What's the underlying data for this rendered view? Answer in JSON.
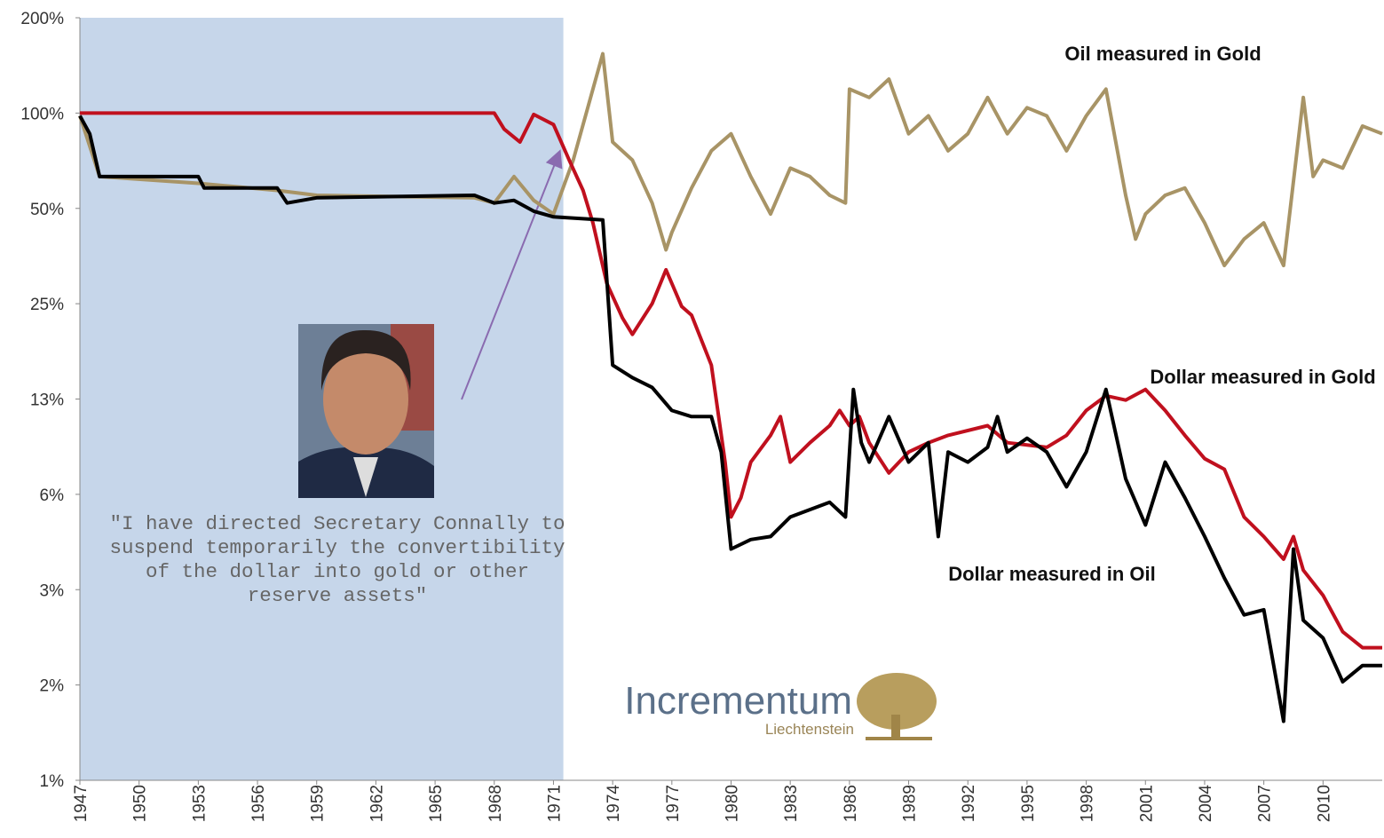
{
  "chart_data": {
    "type": "line",
    "y_scale": "log",
    "ylim": [
      0.78125,
      200
    ],
    "yticks": [
      {
        "value": 200,
        "label": "200%"
      },
      {
        "value": 100,
        "label": "100%"
      },
      {
        "value": 50,
        "label": "50%"
      },
      {
        "value": 25,
        "label": "25%"
      },
      {
        "value": 12.5,
        "label": "13%"
      },
      {
        "value": 6.25,
        "label": "6%"
      },
      {
        "value": 3.125,
        "label": "3%"
      },
      {
        "value": 1.5625,
        "label": "2%"
      },
      {
        "value": 0.78125,
        "label": "1%"
      }
    ],
    "xlim": [
      1947,
      2013
    ],
    "xticks": [
      1947,
      1950,
      1953,
      1956,
      1959,
      1962,
      1965,
      1968,
      1971,
      1974,
      1977,
      1980,
      1983,
      1986,
      1989,
      1992,
      1995,
      1998,
      2001,
      2004,
      2007,
      2010
    ],
    "shaded_span": [
      1947,
      1971.5
    ],
    "annotation": "\"I have directed Secretary Connally to suspend temporarily the convertibility of the dollar into gold or other reserve assets\"",
    "logo": {
      "name": "Incrementum",
      "subtitle": "Liechtenstein"
    },
    "series": [
      {
        "name": "Oil measured in Gold",
        "color": "#a89466",
        "x": [
          1947,
          1948,
          1953,
          1957,
          1959,
          1967,
          1968,
          1969,
          1970,
          1971,
          1972,
          1973,
          1973.5,
          1974,
          1975,
          1976,
          1976.7,
          1977,
          1978,
          1979,
          1980,
          1981,
          1982,
          1983,
          1984,
          1985,
          1985.8,
          1986,
          1987,
          1988,
          1989,
          1990,
          1991,
          1992,
          1993,
          1994,
          1995,
          1996,
          1997,
          1998,
          1999,
          2000,
          2000.5,
          2001,
          2002,
          2003,
          2004,
          2005,
          2006,
          2007,
          2008,
          2009,
          2009.5,
          2010,
          2011,
          2012,
          2013
        ],
        "values": [
          98,
          63,
          60,
          57,
          55,
          54,
          52,
          63,
          53,
          48,
          71,
          119,
          154,
          81,
          71,
          52,
          37,
          42,
          58,
          76,
          86,
          63,
          48,
          67,
          63,
          55,
          52,
          119,
          112,
          128,
          86,
          98,
          76,
          86,
          112,
          86,
          104,
          98,
          76,
          98,
          119,
          55,
          40,
          48,
          55,
          58,
          45,
          33,
          40,
          45,
          33,
          112,
          63,
          71,
          67,
          91,
          86
        ]
      },
      {
        "name": "Dollar measured in Gold",
        "color": "#c0101e",
        "x": [
          1947,
          1968,
          1968.5,
          1969.3,
          1970,
          1971,
          1971.8,
          1972.5,
          1973,
          1973.7,
          1974.5,
          1975,
          1976,
          1976.7,
          1977.5,
          1978,
          1979,
          1979.7,
          1980,
          1980.5,
          1981,
          1982,
          1982.5,
          1983,
          1984,
          1985,
          1985.5,
          1986,
          1986.5,
          1987,
          1988,
          1989,
          1990,
          1991,
          1993,
          1994,
          1996,
          1997,
          1998,
          1999,
          2000,
          2001,
          2002,
          2003,
          2004,
          2005,
          2006,
          2007,
          2008,
          2008.5,
          2009,
          2010,
          2011,
          2012,
          2013
        ],
        "values": [
          100,
          100,
          89,
          81,
          99,
          92,
          71,
          57,
          45,
          29,
          22.5,
          20,
          25,
          32,
          24.5,
          23,
          16,
          7.9,
          5.3,
          6.1,
          7.9,
          9.6,
          11,
          7.9,
          9.1,
          10.3,
          11.5,
          10.3,
          11,
          9.1,
          7.3,
          8.5,
          9.1,
          9.6,
          10.3,
          9.1,
          8.8,
          9.6,
          11.5,
          12.8,
          12.4,
          13.4,
          11.5,
          9.6,
          8.1,
          7.5,
          5.3,
          4.6,
          3.9,
          4.6,
          3.6,
          3.0,
          2.3,
          2.05,
          2.05
        ]
      },
      {
        "name": "Dollar measured in Oil",
        "color": "#000000",
        "x": [
          1947,
          1947.5,
          1948,
          1953,
          1953.3,
          1957,
          1957.5,
          1959,
          1967,
          1968,
          1969,
          1970,
          1971,
          1973.5,
          1974,
          1975,
          1976,
          1977,
          1978,
          1979,
          1979.5,
          1980,
          1981,
          1982,
          1983,
          1985,
          1985.8,
          1986.2,
          1986.6,
          1987,
          1988,
          1989,
          1990,
          1990.5,
          1991,
          1992,
          1993,
          1993.5,
          1994,
          1995,
          1996,
          1997,
          1998,
          1999,
          2000,
          2001,
          2002,
          2003,
          2004,
          2005,
          2006,
          2007,
          2008,
          2008.5,
          2009,
          2010,
          2011,
          2012,
          2013
        ],
        "values": [
          98,
          86,
          63,
          63,
          58,
          58,
          52,
          54,
          55,
          52,
          53,
          49,
          47,
          46,
          16,
          14.6,
          13.6,
          11.5,
          11,
          11,
          8.5,
          4.2,
          4.5,
          4.6,
          5.3,
          5.9,
          5.3,
          13.4,
          9.1,
          7.9,
          11,
          7.9,
          9.1,
          4.6,
          8.5,
          7.9,
          8.8,
          11,
          8.5,
          9.4,
          8.5,
          6.6,
          8.5,
          13.4,
          7.0,
          5.0,
          7.9,
          6.1,
          4.6,
          3.4,
          2.6,
          2.7,
          1.2,
          4.2,
          2.5,
          2.2,
          1.6,
          1.8,
          1.8
        ]
      }
    ]
  }
}
